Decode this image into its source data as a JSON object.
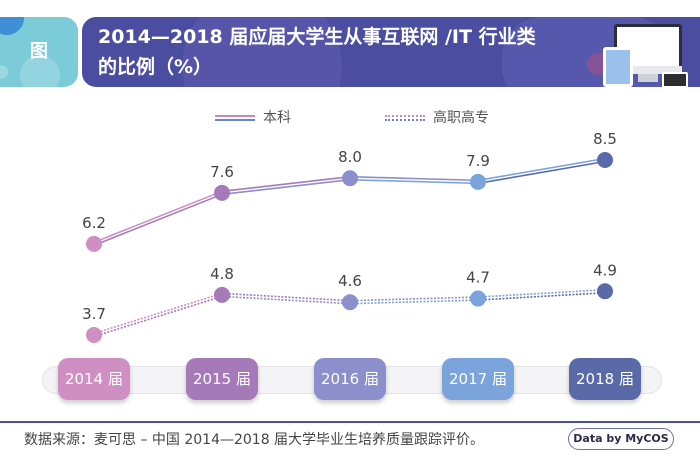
{
  "header": {
    "tag": "图",
    "title_line1": "2014—2018 届应届大学生从事互联网 /IT 行业类",
    "title_line2": "的比例（%）",
    "decor_icons": [
      "monitor-icon",
      "tablet-icon",
      "phone-icon"
    ]
  },
  "colors": {
    "banner": "#4a4da0",
    "tag": "#7ccbd9",
    "year_colors": [
      "#cf8fc3",
      "#a67ab8",
      "#8b8fcb",
      "#7ba3dc",
      "#5a6aa8"
    ]
  },
  "chart_data": {
    "type": "line",
    "title": "2014—2018 届应届大学生从事互联网 /IT 行业类的比例（%）",
    "xlabel": "",
    "ylabel": "",
    "categories": [
      "2014 届",
      "2015 届",
      "2016 届",
      "2017 届",
      "2018 届"
    ],
    "series": [
      {
        "name": "本科",
        "style": "solid-double",
        "values": [
          6.2,
          7.6,
          8.0,
          7.9,
          8.5
        ],
        "labels": [
          "6.2",
          "7.6",
          "8.0",
          "7.9",
          "8.5"
        ]
      },
      {
        "name": "高职高专",
        "style": "dotted-double",
        "values": [
          3.7,
          4.8,
          4.6,
          4.7,
          4.9
        ],
        "labels": [
          "3.7",
          "4.8",
          "4.6",
          "4.7",
          "4.9"
        ]
      }
    ],
    "legend_position": "top-center",
    "grid": false,
    "ylim": [
      2.5,
      9.5
    ]
  },
  "footer": {
    "source": "数据来源：麦可思 – 中国 2014—2018 届大学毕业生培养质量跟踪评价。",
    "badge": "Data by MyCOS"
  }
}
